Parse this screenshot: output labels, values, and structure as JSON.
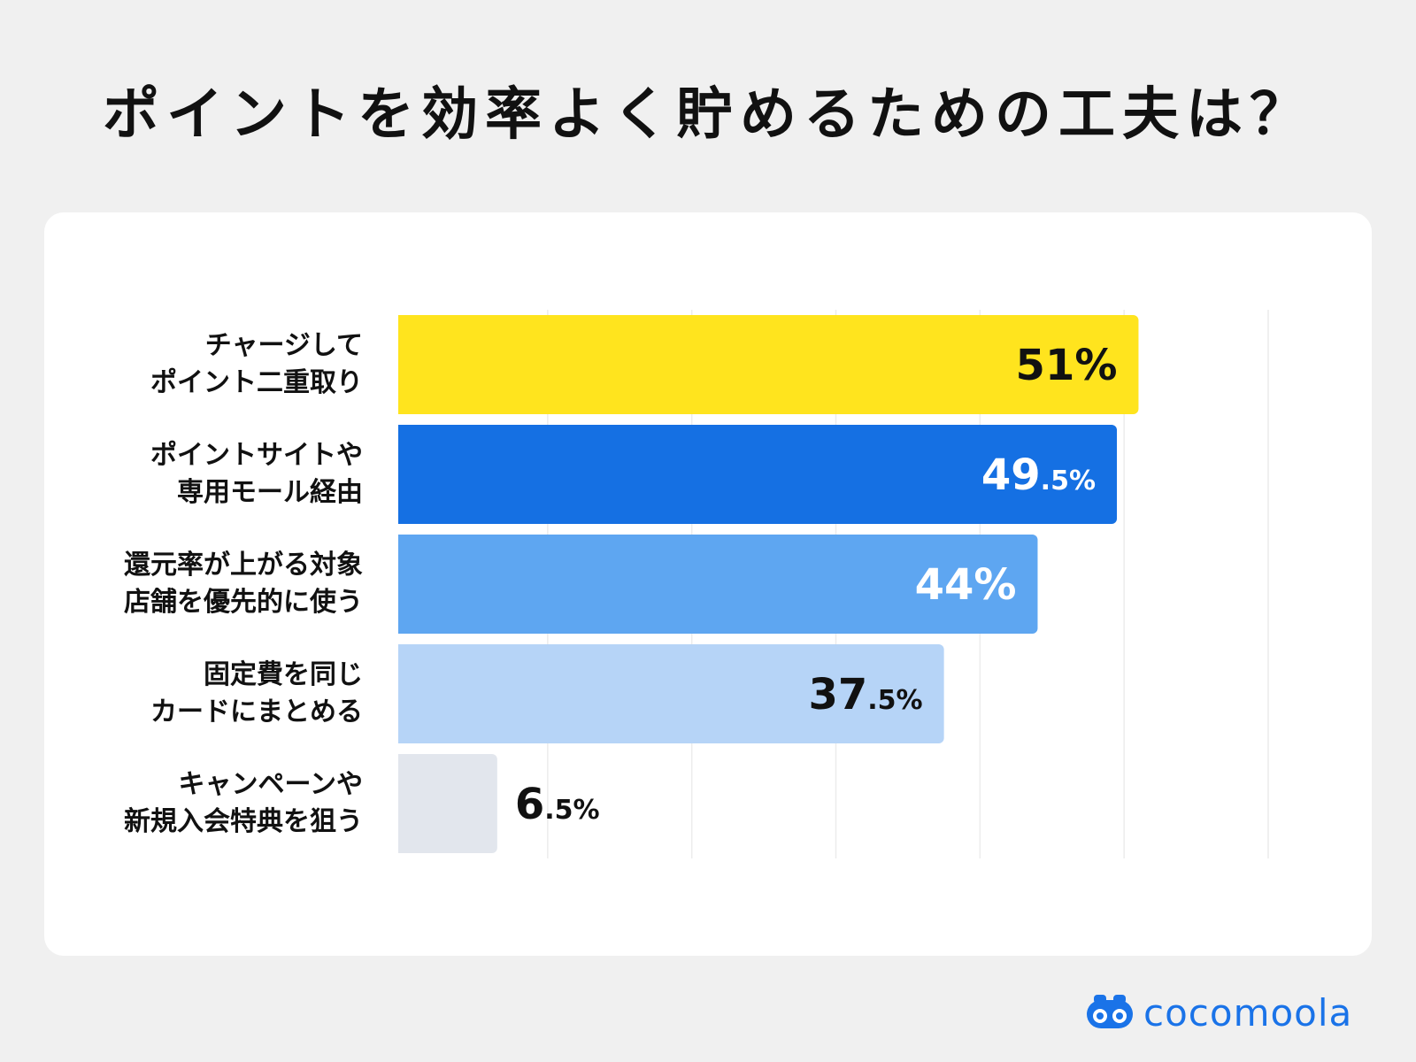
{
  "page_title": "ポイントを効率よく貯めるための工夫は？",
  "brand": {
    "name": "cocomoola",
    "color": "#1a73e8"
  },
  "chart_data": {
    "type": "bar",
    "orientation": "horizontal",
    "categories": [
      "チャージして\nポイント二重取り",
      "ポイントサイトや\n専用モール経由",
      "還元率が上がる対象\n店舗を優先的に使う",
      "固定費を同じ\nカードにまとめる",
      "キャンペーンや\n新規入会特典を狙う"
    ],
    "values": [
      51,
      49.5,
      44,
      37.5,
      6.5
    ],
    "value_labels": [
      {
        "main": "51",
        "decimal": "",
        "unit": "%"
      },
      {
        "main": "49",
        "decimal": ".5",
        "unit": "%"
      },
      {
        "main": "44",
        "decimal": "",
        "unit": "%"
      },
      {
        "main": "37",
        "decimal": ".5",
        "unit": "%"
      },
      {
        "main": "6",
        "decimal": ".5",
        "unit": "%"
      }
    ],
    "colors": [
      "#ffe41e",
      "#1570e3",
      "#5ea6f1",
      "#b6d4f7",
      "#e2e6ed"
    ],
    "label_colors": [
      "#111111",
      "#ffffff",
      "#ffffff",
      "#111111",
      "#111111"
    ],
    "xlim": [
      0,
      60
    ],
    "grid": true,
    "unit": "%"
  }
}
